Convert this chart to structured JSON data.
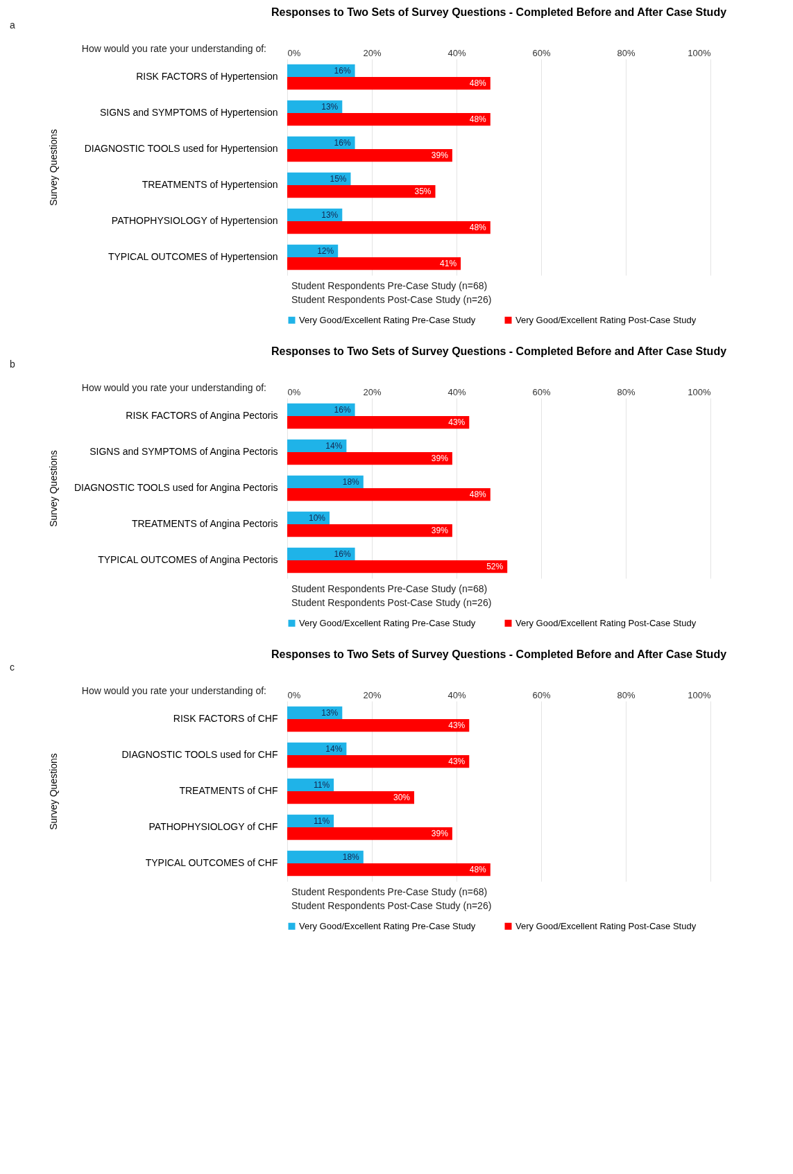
{
  "chart_data": [
    {
      "type": "bar",
      "orientation": "horizontal",
      "title": "Responses to Two Sets of Survey Questions - Completed Before and After Case Study",
      "ylabel": "Survey Questions",
      "annotations": [
        "a",
        "How would you rate your understanding of:",
        "Student Respondents Pre-Case Study (n=68)",
        "Student Respondents Post-Case Study (n=26)"
      ],
      "categories": [
        "RISK FACTORS of Hypertension",
        "SIGNS and SYMPTOMS of Hypertension",
        "DIAGNOSTIC TOOLS used for Hypertension",
        "TREATMENTS of Hypertension",
        "PATHOPHYSIOLOGY of Hypertension",
        "TYPICAL OUTCOMES of Hypertension"
      ],
      "series": [
        {
          "name": "Very Good/Excellent Rating Pre-Case Study",
          "color": "#1fb3e8",
          "values": [
            16,
            13,
            16,
            15,
            13,
            12
          ],
          "value_labels": [
            "16%",
            "13%",
            "16%",
            "15%",
            "13%",
            "12%"
          ]
        },
        {
          "name": "Very Good/Excellent Rating Post-Case Study",
          "color": "#ff0000",
          "values": [
            48,
            48,
            39,
            35,
            48,
            41
          ],
          "value_labels": [
            "48%",
            "48%",
            "39%",
            "35%",
            "48%",
            "41%"
          ]
        }
      ],
      "xlim": [
        0,
        100
      ],
      "xticks": [
        {
          "value": 0,
          "label": "0%"
        },
        {
          "value": 20,
          "label": "20%"
        },
        {
          "value": 40,
          "label": "40%"
        },
        {
          "value": 60,
          "label": "60%"
        },
        {
          "value": 80,
          "label": "80%"
        },
        {
          "value": 100,
          "label": "100%"
        }
      ],
      "grid": "x",
      "legend": "bottom"
    },
    {
      "type": "bar",
      "orientation": "horizontal",
      "title": "Responses to Two Sets of Survey Questions - Completed Before and After Case Study",
      "ylabel": "Survey Questions",
      "annotations": [
        "b",
        "How would you rate your understanding of:",
        "Student Respondents Pre-Case Study (n=68)",
        "Student Respondents Post-Case Study (n=26)"
      ],
      "categories": [
        "RISK FACTORS of Angina Pectoris",
        "SIGNS and SYMPTOMS of Angina Pectoris",
        "DIAGNOSTIC TOOLS used for Angina Pectoris",
        "TREATMENTS of Angina Pectoris",
        "TYPICAL OUTCOMES of Angina Pectoris"
      ],
      "series": [
        {
          "name": "Very Good/Excellent Rating Pre-Case Study",
          "color": "#1fb3e8",
          "values": [
            16,
            14,
            18,
            10,
            16
          ],
          "value_labels": [
            "16%",
            "14%",
            "18%",
            "10%",
            "16%"
          ]
        },
        {
          "name": "Very Good/Excellent Rating Post-Case Study",
          "color": "#ff0000",
          "values": [
            43,
            39,
            48,
            39,
            52
          ],
          "value_labels": [
            "43%",
            "39%",
            "48%",
            "39%",
            "52%"
          ]
        }
      ],
      "xlim": [
        0,
        100
      ],
      "xticks": [
        {
          "value": 0,
          "label": "0%"
        },
        {
          "value": 20,
          "label": "20%"
        },
        {
          "value": 40,
          "label": "40%"
        },
        {
          "value": 60,
          "label": "60%"
        },
        {
          "value": 80,
          "label": "80%"
        },
        {
          "value": 100,
          "label": "100%"
        }
      ],
      "grid": "x",
      "legend": "bottom"
    },
    {
      "type": "bar",
      "orientation": "horizontal",
      "title": "Responses to Two Sets of Survey Questions - Completed Before and After Case Study",
      "ylabel": "Survey Questions",
      "annotations": [
        "c",
        "How would you rate your understanding of:",
        "Student Respondents Pre-Case Study (n=68)",
        "Student Respondents Post-Case Study (n=26)"
      ],
      "categories": [
        "RISK FACTORS of CHF",
        "DIAGNOSTIC TOOLS used for CHF",
        "TREATMENTS of CHF",
        "PATHOPHYSIOLOGY of CHF",
        "TYPICAL OUTCOMES of CHF"
      ],
      "series": [
        {
          "name": "Very Good/Excellent Rating Pre-Case Study",
          "color": "#1fb3e8",
          "values": [
            13,
            14,
            11,
            11,
            18
          ],
          "value_labels": [
            "13%",
            "14%",
            "11%",
            "11%",
            "18%"
          ]
        },
        {
          "name": "Very Good/Excellent Rating Post-Case Study",
          "color": "#ff0000",
          "values": [
            43,
            43,
            30,
            39,
            48
          ],
          "value_labels": [
            "43%",
            "43%",
            "30%",
            "39%",
            "48%"
          ]
        }
      ],
      "xlim": [
        0,
        100
      ],
      "xticks": [
        {
          "value": 0,
          "label": "0%"
        },
        {
          "value": 20,
          "label": "20%"
        },
        {
          "value": 40,
          "label": "40%"
        },
        {
          "value": 60,
          "label": "60%"
        },
        {
          "value": 80,
          "label": "80%"
        },
        {
          "value": 100,
          "label": "100%"
        }
      ],
      "grid": "x",
      "legend": "bottom"
    }
  ]
}
